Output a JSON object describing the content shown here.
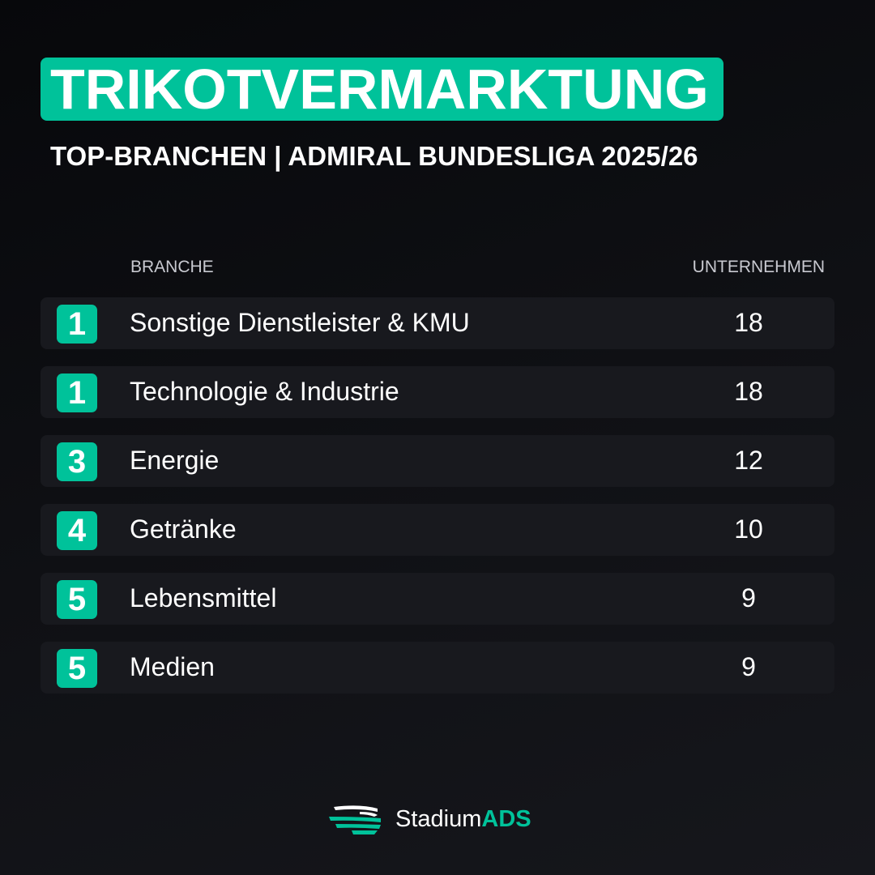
{
  "header": {
    "title": "TRIKOTVERMARKTUNG",
    "subtitle": "TOP-BRANCHEN | ADMIRAL BUNDESLIGA 2025/26"
  },
  "table": {
    "col_branche": "BRANCHE",
    "col_unternehmen": "UNTERNEHMEN",
    "rows": [
      {
        "rank": "1",
        "name": "Sonstige Dienstleister & KMU",
        "count": "18"
      },
      {
        "rank": "1",
        "name": "Technologie & Industrie",
        "count": "18"
      },
      {
        "rank": "3",
        "name": "Energie",
        "count": "12"
      },
      {
        "rank": "4",
        "name": "Getränke",
        "count": "10"
      },
      {
        "rank": "5",
        "name": "Lebensmittel",
        "count": "9"
      },
      {
        "rank": "5",
        "name": "Medien",
        "count": "9"
      }
    ]
  },
  "logo": {
    "text_light": "Stadium",
    "text_bold": "ADS",
    "icon": "stadium-icon"
  },
  "colors": {
    "accent": "#00c29a",
    "row_bg": "#18191e"
  }
}
